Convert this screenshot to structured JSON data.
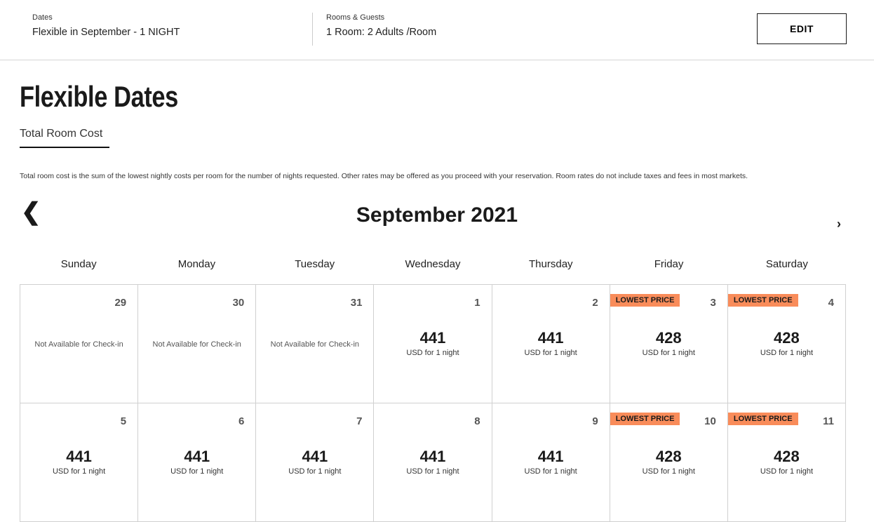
{
  "search": {
    "dates_label": "Dates",
    "dates_value": "Flexible in September - 1 NIGHT",
    "rooms_label": "Rooms & Guests",
    "rooms_value": "1 Room: 2 Adults /Room",
    "edit_label": "EDIT"
  },
  "page": {
    "title": "Flexible Dates",
    "tab": "Total Room Cost",
    "note": "Total room cost is the sum of the lowest nightly costs per room for the number of nights requested. Other rates may be offered as you proceed with your reservation. Room rates do not include taxes and fees in most markets."
  },
  "calendar": {
    "month": "September 2021",
    "prev_icon": "chevron-left-icon",
    "next_icon": "chevron-right-icon",
    "weekdays": [
      "Sunday",
      "Monday",
      "Tuesday",
      "Wednesday",
      "Thursday",
      "Friday",
      "Saturday"
    ],
    "badge_color": "#f98c5a",
    "cells": [
      {
        "day": "29",
        "note": "Not Available for Check-in"
      },
      {
        "day": "30",
        "note": "Not Available for Check-in"
      },
      {
        "day": "31",
        "note": "Not Available for Check-in"
      },
      {
        "day": "1",
        "price": "441",
        "unit": "USD for 1 night"
      },
      {
        "day": "2",
        "price": "441",
        "unit": "USD for 1 night"
      },
      {
        "day": "3",
        "price": "428",
        "unit": "USD for 1 night",
        "badge": "LOWEST PRICE"
      },
      {
        "day": "4",
        "price": "428",
        "unit": "USD for 1 night",
        "badge": "LOWEST PRICE"
      },
      {
        "day": "5",
        "price": "441",
        "unit": "USD for 1 night"
      },
      {
        "day": "6",
        "price": "441",
        "unit": "USD for 1 night"
      },
      {
        "day": "7",
        "price": "441",
        "unit": "USD for 1 night"
      },
      {
        "day": "8",
        "price": "441",
        "unit": "USD for 1 night"
      },
      {
        "day": "9",
        "price": "441",
        "unit": "USD for 1 night"
      },
      {
        "day": "10",
        "price": "428",
        "unit": "USD for 1 night",
        "badge": "LOWEST PRICE"
      },
      {
        "day": "11",
        "price": "428",
        "unit": "USD for 1 night",
        "badge": "LOWEST PRICE"
      }
    ]
  }
}
